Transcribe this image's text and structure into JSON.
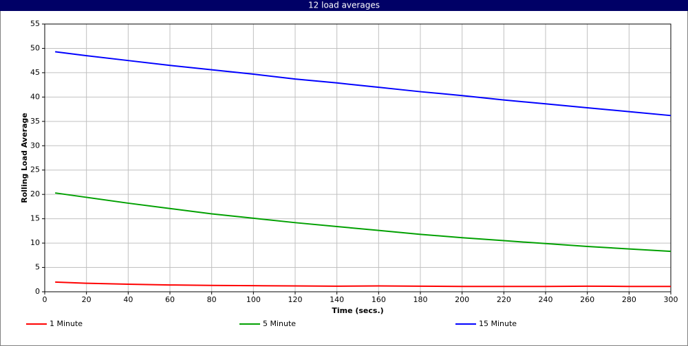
{
  "chart_data": {
    "type": "line",
    "title": "12 load averages",
    "x_label": "Time (secs.)",
    "y_label": "Rolling Load Average",
    "x": [
      5,
      20,
      40,
      60,
      80,
      100,
      120,
      140,
      160,
      180,
      200,
      220,
      240,
      260,
      280,
      300
    ],
    "series": [
      {
        "name": "1 Minute",
        "color": "#ff0000",
        "values": [
          2.0,
          1.75,
          1.55,
          1.4,
          1.3,
          1.25,
          1.2,
          1.15,
          1.2,
          1.15,
          1.1,
          1.1,
          1.1,
          1.15,
          1.1,
          1.1
        ]
      },
      {
        "name": "5 Minute",
        "color": "#00a000",
        "values": [
          20.3,
          19.4,
          18.2,
          17.1,
          16.0,
          15.1,
          14.2,
          13.4,
          12.6,
          11.8,
          11.1,
          10.5,
          9.9,
          9.3,
          8.8,
          8.3
        ]
      },
      {
        "name": "15 Minute",
        "color": "#0000ff",
        "values": [
          49.3,
          48.5,
          47.5,
          46.5,
          45.6,
          44.7,
          43.7,
          42.9,
          42.0,
          41.1,
          40.3,
          39.4,
          38.6,
          37.8,
          37.0,
          36.2
        ]
      }
    ],
    "xlim": [
      0,
      300
    ],
    "xticks": [
      0,
      20,
      40,
      60,
      80,
      100,
      120,
      140,
      160,
      180,
      200,
      220,
      240,
      260,
      280,
      300
    ],
    "ylim": [
      0,
      55
    ],
    "yticks": [
      0,
      5,
      10,
      15,
      20,
      25,
      30,
      35,
      40,
      45,
      50,
      55
    ],
    "grid": true
  }
}
